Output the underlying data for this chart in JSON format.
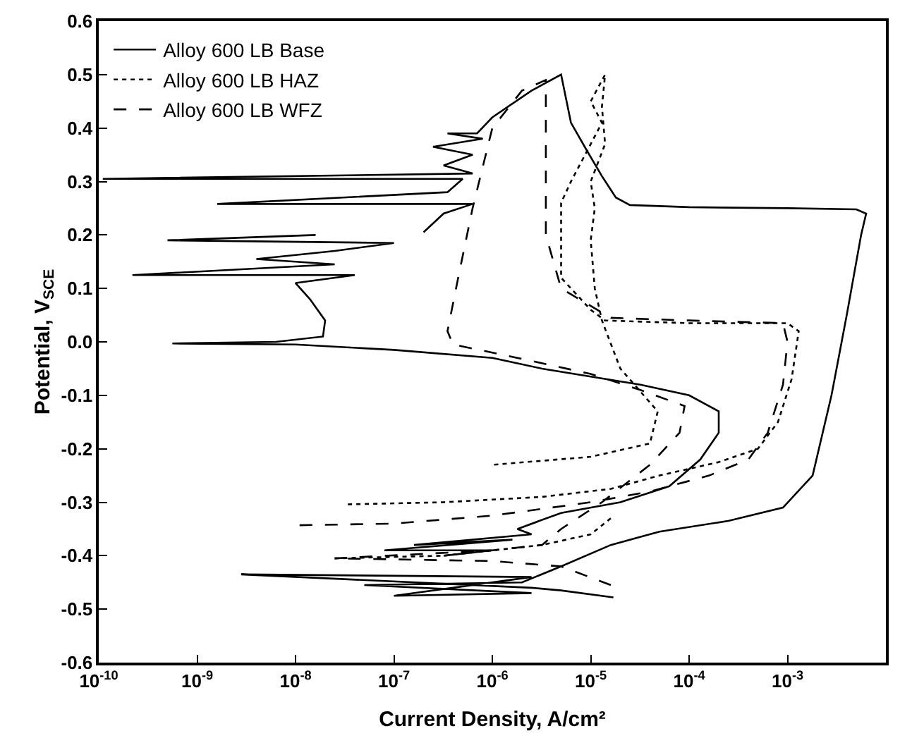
{
  "chart_data": {
    "type": "line",
    "xlabel": "Current Density, A/cm²",
    "ylabel": "Potential, V$_{SCE}$",
    "log": "x",
    "xlim": [
      1e-10,
      0.01
    ],
    "xticks": [
      {
        "value": 1e-10,
        "label": "10$^{-10}$"
      },
      {
        "value": 1e-09,
        "label": "10$^{-9}$"
      },
      {
        "value": 1e-08,
        "label": "10$^{-8}$"
      },
      {
        "value": 1e-07,
        "label": "10$^{-7}$"
      },
      {
        "value": 1e-06,
        "label": "10$^{-6}$"
      },
      {
        "value": 1e-05,
        "label": "10$^{-5}$"
      },
      {
        "value": 0.0001,
        "label": "10$^{-4}$"
      },
      {
        "value": 0.001,
        "label": "10$^{-3}$"
      },
      {
        "value": 0.01,
        "label": null
      }
    ],
    "ylim": [
      -0.6,
      0.6
    ],
    "yticks": [
      -0.6,
      -0.5,
      -0.4,
      -0.3,
      -0.2,
      -0.1,
      {
        "value": 0,
        "label": "0.0"
      },
      0.1,
      0.2,
      0.3,
      0.4,
      0.5,
      0.6
    ],
    "legend": "top left",
    "marker": "none",
    "series": [
      {
        "name": "Alloy 600 LB Base",
        "color": "#000000",
        "line_style": "solid",
        "x": [
          1.7e-05,
          5e-06,
          2.5e-06,
          2.8e-09,
          2.5e-06,
          1e-07,
          2.5e-06,
          5e-08,
          2e-06,
          5e-06,
          1.6e-05,
          5e-05,
          0.00025,
          0.0009,
          0.0018,
          0.0028,
          0.004,
          0.0056,
          0.0063,
          0.005,
          0.001,
          0.0001,
          2.5e-05,
          1.8e-05,
          1.3e-05,
          9e-06,
          6.3e-06,
          5e-06,
          2.5e-06,
          1e-06,
          7e-07,
          3.5e-07,
          8e-07,
          2.5e-07,
          6.3e-07,
          3.2e-07,
          6.3e-07,
          1.1e-10,
          5e-07,
          3.5e-07,
          1.6e-09,
          6.3e-07,
          3.2e-07,
          2e-07,
          null,
          1.6e-08,
          5e-10,
          1e-07,
          2.5e-08,
          4e-09,
          2.5e-08,
          2.2e-10,
          4e-08,
          1e-08,
          1.4e-08,
          2e-08,
          1.9e-08,
          6.3e-09,
          5.6e-10,
          1e-08,
          1e-07,
          1e-06,
          3.2e-06,
          1e-05,
          3.2e-05,
          0.0001,
          0.0002,
          0.0002,
          0.00013,
          6.3e-05,
          2e-05,
          5e-06,
          1.8e-06,
          2.5e-06,
          1.6e-07,
          1.6e-06,
          8e-08,
          1e-06,
          3.2e-07
        ],
        "values": [
          -0.478,
          -0.465,
          -0.46,
          -0.435,
          -0.44,
          -0.475,
          -0.47,
          -0.455,
          -0.45,
          -0.42,
          -0.38,
          -0.355,
          -0.335,
          -0.31,
          -0.25,
          -0.1,
          0.05,
          0.2,
          0.24,
          0.248,
          0.25,
          0.252,
          0.256,
          0.27,
          0.31,
          0.36,
          0.41,
          0.5,
          0.47,
          0.42,
          0.39,
          0.39,
          0.38,
          0.365,
          0.35,
          0.33,
          0.315,
          0.305,
          0.305,
          0.28,
          0.258,
          0.258,
          0.24,
          0.205,
          null,
          0.2,
          0.19,
          0.185,
          0.17,
          0.155,
          0.145,
          0.125,
          0.125,
          0.11,
          0.08,
          0.04,
          0.01,
          0.0,
          -0.003,
          -0.005,
          -0.015,
          -0.03,
          -0.05,
          -0.065,
          -0.08,
          -0.1,
          -0.13,
          -0.17,
          -0.22,
          -0.27,
          -0.3,
          -0.32,
          -0.35,
          -0.36,
          -0.38,
          -0.37,
          -0.39,
          -0.39,
          -0.4
        ]
      },
      {
        "name": "Alloy 600 LB HAZ",
        "color": "#000000",
        "line_style": "dotted",
        "x": [
          3.4e-08,
          3.2e-07,
          3.2e-06,
          1.6e-05,
          5e-05,
          0.0002,
          0.0005,
          0.0008,
          0.0011,
          0.0013,
          0.001,
          0.0001,
          1.4e-05,
          1e-05,
          5e-06,
          5e-06,
          5e-06,
          6.3e-06,
          1e-05,
          1.3e-05,
          1e-05,
          1.4e-05,
          1.3e-05,
          1.4e-05,
          1e-05,
          1.1e-05,
          1e-05,
          1.1e-05,
          1.3e-05,
          2e-05,
          4.8e-05,
          4e-05,
          1e-05,
          1e-06,
          null,
          2.5e-08,
          3.2e-07,
          3.2e-06,
          1e-05,
          1.6e-05
        ],
        "values": [
          -0.304,
          -0.3,
          -0.29,
          -0.275,
          -0.25,
          -0.225,
          -0.2,
          -0.15,
          -0.07,
          0.02,
          0.035,
          0.035,
          0.04,
          0.06,
          0.12,
          0.2,
          0.26,
          0.3,
          0.37,
          0.41,
          0.45,
          0.5,
          0.44,
          0.37,
          0.3,
          0.25,
          0.19,
          0.1,
          0.04,
          -0.05,
          -0.13,
          -0.19,
          -0.215,
          -0.23,
          null,
          -0.405,
          -0.4,
          -0.38,
          -0.36,
          -0.33
        ]
      },
      {
        "name": "Alloy 600 LB WFZ",
        "color": "#000000",
        "line_style": "dashed",
        "x": [
          1.1e-08,
          1e-07,
          1e-06,
          1e-05,
          4e-05,
          0.00016,
          0.0004,
          0.00063,
          0.0009,
          0.001,
          0.0009,
          0.0001,
          1.6e-05,
          5e-06,
          3.5e-06,
          3.5e-06,
          3.5e-06,
          2e-06,
          1e-06,
          6.3e-07,
          4.5e-07,
          3.5e-07,
          4e-07,
          1e-06,
          3.2e-06,
          1e-05,
          3.2e-05,
          9e-05,
          8e-05,
          4e-05,
          1.3e-05,
          5e-06,
          3.2e-06,
          1e-06,
          2.5e-08,
          1e-06,
          5e-06,
          1.6e-05
        ],
        "values": [
          -0.343,
          -0.34,
          -0.325,
          -0.3,
          -0.28,
          -0.25,
          -0.22,
          -0.17,
          -0.08,
          0.0,
          0.035,
          0.04,
          0.045,
          0.1,
          0.2,
          0.35,
          0.49,
          0.47,
          0.4,
          0.25,
          0.12,
          0.02,
          -0.005,
          -0.02,
          -0.04,
          -0.06,
          -0.09,
          -0.12,
          -0.17,
          -0.23,
          -0.3,
          -0.35,
          -0.38,
          -0.39,
          -0.405,
          -0.41,
          -0.42,
          -0.455
        ]
      }
    ]
  }
}
